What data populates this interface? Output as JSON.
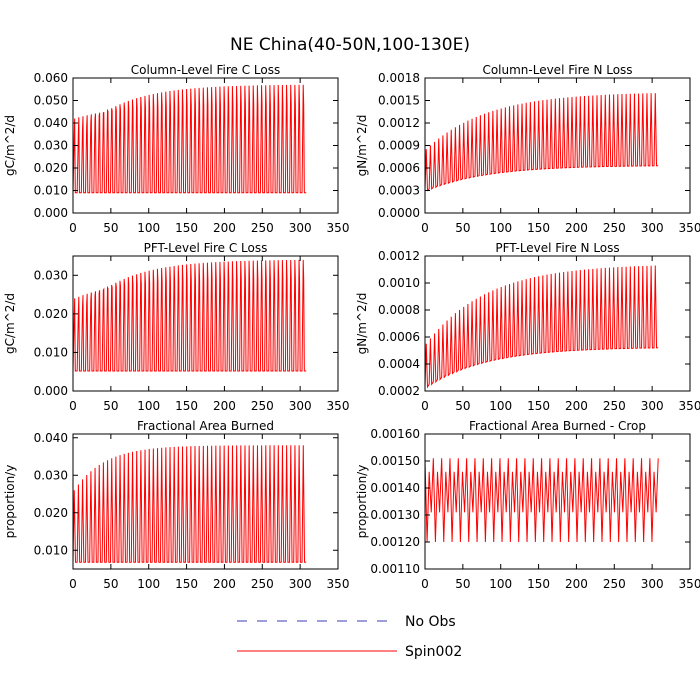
{
  "figure_title": "NE China(40-50N,100-130E)",
  "chart_data": [
    {
      "type": "line",
      "title": "Column-Level Fire C Loss",
      "ylabel": "gC/m^2/d",
      "xlim": [
        0,
        350
      ],
      "ylim": [
        0.0,
        0.06
      ],
      "xticks": [
        "0",
        "50",
        "100",
        "150",
        "200",
        "250",
        "300",
        "350"
      ],
      "yticks": [
        "0.000",
        "0.010",
        "0.020",
        "0.030",
        "0.040",
        "0.050",
        "0.060"
      ],
      "x_end": 308,
      "cycle_years": 5.5,
      "series": [
        {
          "name": "Spin002",
          "color": "#ff0000",
          "min": 0.009,
          "max_start": 0.033,
          "max_end": 0.057,
          "secondary_start": 0.042,
          "secondary_end": 0.048,
          "rise_rate": 60
        }
      ]
    },
    {
      "type": "line",
      "title": "Column-Level Fire N Loss",
      "ylabel": "gN/m^2/d",
      "xlim": [
        0,
        350
      ],
      "ylim": [
        0.0,
        0.0018
      ],
      "xticks": [
        "0",
        "50",
        "100",
        "150",
        "200",
        "250",
        "300",
        "350"
      ],
      "yticks": [
        "0.0000",
        "0.0003",
        "0.0006",
        "0.0009",
        "0.0012",
        "0.0015",
        "0.0018"
      ],
      "x_end": 308,
      "cycle_years": 5.5,
      "series": [
        {
          "name": "Spin002",
          "color": "#ff0000",
          "min_start": 0.0003,
          "min_end": 0.00063,
          "max_start": 0.00085,
          "max_end": 0.0016,
          "rise_rate": 80
        }
      ]
    },
    {
      "type": "line",
      "title": "PFT-Level Fire C Loss",
      "ylabel": "gC/m^2/d",
      "xlim": [
        0,
        350
      ],
      "ylim": [
        0.0,
        0.035
      ],
      "xticks": [
        "0",
        "50",
        "100",
        "150",
        "200",
        "250",
        "300",
        "350"
      ],
      "yticks": [
        "0.000",
        "0.010",
        "0.020",
        "0.030"
      ],
      "x_end": 308,
      "cycle_years": 5.5,
      "series": [
        {
          "name": "Spin002",
          "color": "#ff0000",
          "min": 0.0052,
          "max_start": 0.019,
          "max_end": 0.034,
          "secondary_start": 0.024,
          "secondary_end": 0.029,
          "rise_rate": 60
        }
      ]
    },
    {
      "type": "line",
      "title": "PFT-Level Fire N Loss",
      "ylabel": "gN/m^2/d",
      "xlim": [
        0,
        350
      ],
      "ylim": [
        0.0002,
        0.0012
      ],
      "xticks": [
        "0",
        "50",
        "100",
        "150",
        "200",
        "250",
        "300",
        "350"
      ],
      "yticks": [
        "0.0002",
        "0.0004",
        "0.0006",
        "0.0008",
        "0.0010",
        "0.0012"
      ],
      "x_end": 308,
      "cycle_years": 5.5,
      "series": [
        {
          "name": "Spin002",
          "color": "#ff0000",
          "min_start": 0.00023,
          "min_end": 0.00052,
          "max_start": 0.00055,
          "max_end": 0.00113,
          "rise_rate": 80
        }
      ]
    },
    {
      "type": "line",
      "title": "Fractional Area Burned",
      "ylabel": "proportion/y",
      "xlim": [
        0,
        350
      ],
      "ylim": [
        0.005,
        0.041
      ],
      "xticks": [
        "0",
        "50",
        "100",
        "150",
        "200",
        "250",
        "300",
        "350"
      ],
      "yticks": [
        "0.010",
        "0.020",
        "0.030",
        "0.040"
      ],
      "x_end": 308,
      "cycle_years": 5.5,
      "series": [
        {
          "name": "Spin002",
          "color": "#ff0000",
          "min": 0.0068,
          "max_start": 0.026,
          "max_end": 0.038,
          "rise_rate": 40
        }
      ]
    },
    {
      "type": "line",
      "title": "Fractional Area Burned - Crop",
      "ylabel": "proportion/y",
      "xlim": [
        0,
        350
      ],
      "ylim": [
        0.0011,
        0.0016
      ],
      "xticks": [
        "0",
        "50",
        "100",
        "150",
        "200",
        "250",
        "300",
        "350"
      ],
      "yticks": [
        "0.00110",
        "0.00120",
        "0.00130",
        "0.00140",
        "0.00150",
        "0.00160"
      ],
      "x_end": 308,
      "cycle_years": 5.5,
      "series": [
        {
          "name": "Spin002",
          "color": "#ff0000",
          "band": [
            0.0012,
            0.00151,
            0.00131,
            0.00146
          ]
        }
      ]
    }
  ],
  "legend": [
    {
      "label": "No Obs",
      "color": "#3b3bb5",
      "dash": true
    },
    {
      "label": "Spin002",
      "color": "#ff0000",
      "dash": false
    }
  ]
}
